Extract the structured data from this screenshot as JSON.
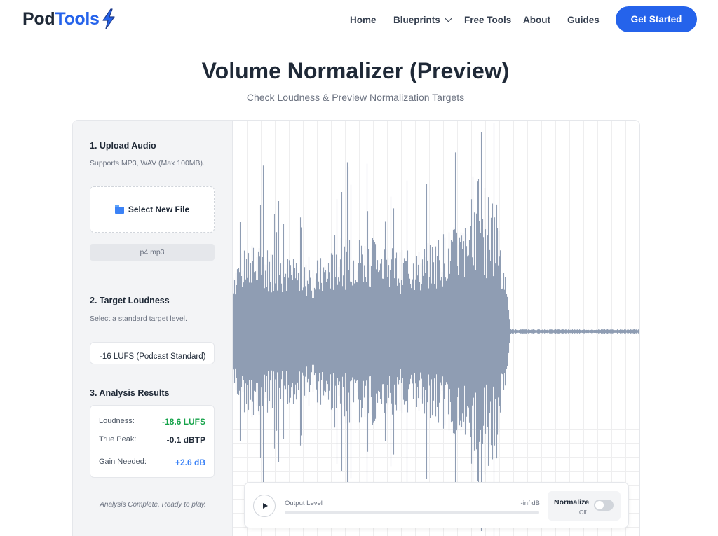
{
  "brand": {
    "name_part1": "Pod",
    "name_part2": "Tools"
  },
  "nav": {
    "home": "Home",
    "blueprints": "Blueprints",
    "free_tools": "Free Tools",
    "about": "About",
    "guides": "Guides",
    "cta": "Get Started"
  },
  "page": {
    "title": "Volume Normalizer (Preview)",
    "subtitle": "Check Loudness & Preview Normalization Targets"
  },
  "upload": {
    "title": "1. Upload Audio",
    "desc": "Supports MP3, WAV (Max 100MB).",
    "button_label": "Select New File",
    "file_name": "p4.mp3"
  },
  "target": {
    "title": "2. Target Loudness",
    "desc": "Select a standard target level.",
    "selected": "-16 LUFS (Podcast Standard)"
  },
  "results": {
    "title": "3. Analysis Results",
    "loudness_label": "Loudness:",
    "loudness_value": "-18.6 LUFS",
    "peak_label": "True Peak:",
    "peak_value": "-0.1 dBTP",
    "gain_label": "Gain Needed:",
    "gain_value": "+2.6 dB",
    "status": "Analysis Complete. Ready to play."
  },
  "player": {
    "level_label": "Output Level",
    "level_value": "-inf dB",
    "level_fraction": 0,
    "normalize_label": "Normalize",
    "normalize_state": "Off"
  },
  "colors": {
    "accent": "#2563eb",
    "success": "#16a34a",
    "gain": "#3b82f6",
    "waveform": "#8f9db3"
  }
}
